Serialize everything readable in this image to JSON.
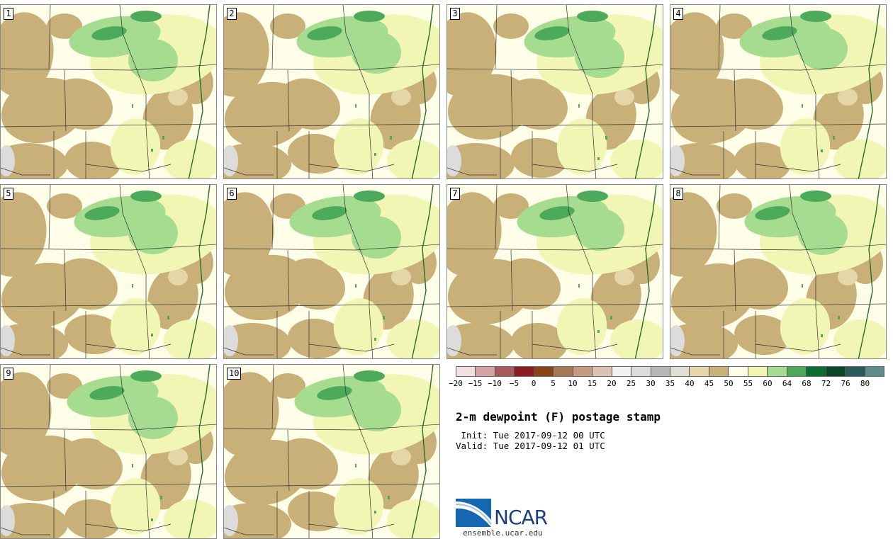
{
  "figure": {
    "title": "2-m dewpoint (F) postage stamp",
    "init_label": " Init:",
    "init_value": "Tue 2017-09-12 00 UTC",
    "valid_label": "Valid:",
    "valid_value": "Tue 2017-09-12 01 UTC"
  },
  "members": [
    "1",
    "2",
    "3",
    "4",
    "5",
    "6",
    "7",
    "8",
    "9",
    "10"
  ],
  "colorbar": {
    "colors": [
      "#f2dfe0",
      "#d4a3a6",
      "#a95a5f",
      "#8c1c21",
      "#8a4418",
      "#a67854",
      "#c49a80",
      "#dcc1b4",
      "#f2f2f2",
      "#dcdcdc",
      "#b7b7b7",
      "#e0e0d2",
      "#e4d6a6",
      "#c8b078",
      "#fdfde8",
      "#f2f6b4",
      "#a6dc90",
      "#4caa5a",
      "#0a6e32",
      "#0a4628",
      "#2a5a5a",
      "#5a8c8c"
    ],
    "tick_labels": [
      "−20",
      "−15",
      "−10",
      "−5",
      "0",
      "5",
      "10",
      "15",
      "20",
      "25",
      "30",
      "35",
      "40",
      "45",
      "50",
      "55",
      "60",
      "64",
      "68",
      "72",
      "76",
      "80"
    ]
  },
  "logo": {
    "text": "NCAR",
    "url": "ensemble.ucar.edu"
  }
}
